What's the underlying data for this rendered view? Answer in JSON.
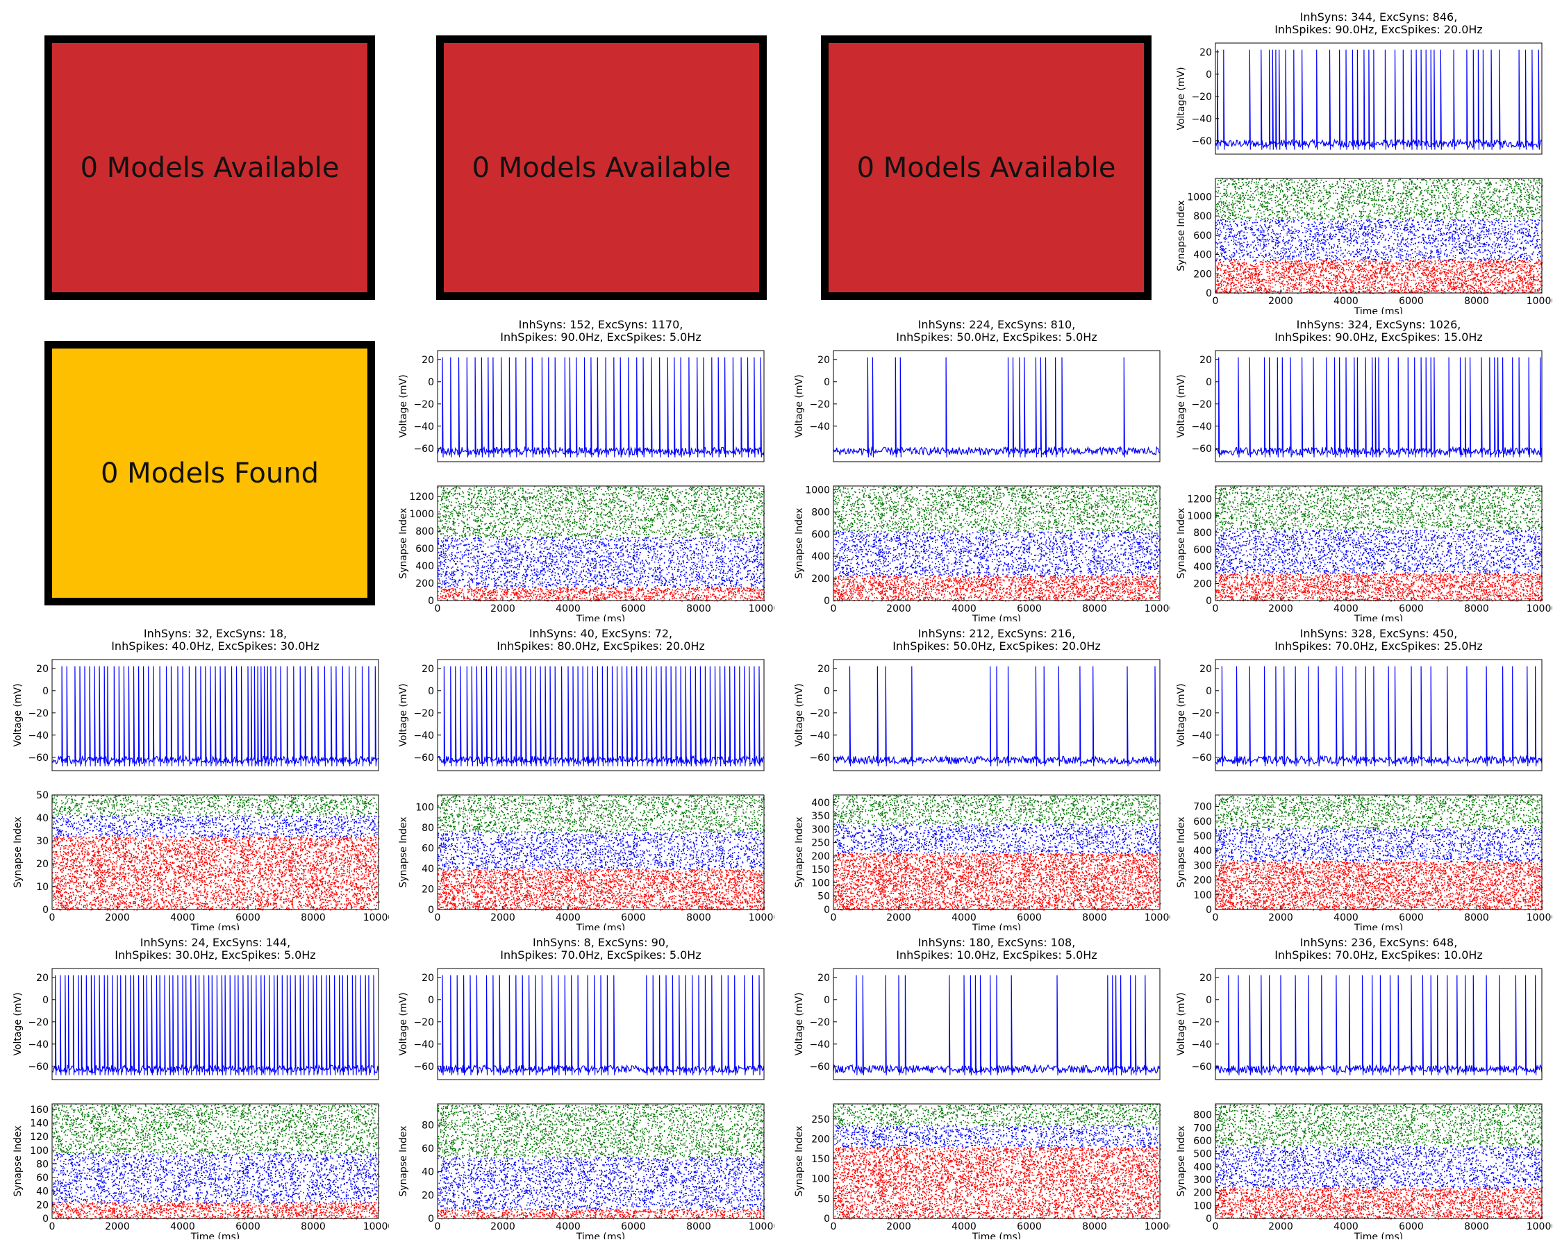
{
  "boxes": [
    {
      "label": "0 Models Available",
      "color": "#CB2B2E"
    },
    {
      "label": "0 Models Available",
      "color": "#CB2B2E"
    },
    {
      "label": "0 Models Available",
      "color": "#CB2B2E"
    },
    {
      "label": "0 Models Found",
      "color": "#FDBF00"
    }
  ],
  "colors": {
    "voltage": "#0000ff",
    "inh": "#ff0000",
    "mid": "#0000ff",
    "exc": "#007700"
  },
  "chart_data": [
    {
      "type": "line",
      "title_line1": "InhSyns: 344, ExcSyns: 846,",
      "title_line2": "InhSpikes: 90.0Hz, ExcSpikes: 20.0Hz",
      "voltage_ylabel": "Voltage (mV)",
      "voltage_yticks": [
        20,
        0,
        -20,
        -40,
        -60
      ],
      "voltage_ylim": [
        -72,
        28
      ],
      "raster_ylabel": "Synapse Index",
      "raster_yticks": [
        0,
        200,
        400,
        600,
        800,
        1000
      ],
      "raster_ylim": [
        0,
        1190
      ],
      "xlabel": "Time (ms)",
      "xticks": [
        0,
        2000,
        4000,
        6000,
        8000,
        10000
      ],
      "xlim": [
        0,
        10000
      ],
      "raster_bands": [
        [
          0,
          344,
          "inh"
        ],
        [
          344,
          767,
          "mid"
        ],
        [
          767,
          1190,
          "exc"
        ]
      ],
      "spike_times": [
        60,
        250,
        1050,
        1400,
        1650,
        1750,
        1850,
        1950,
        2150,
        2400,
        2650,
        3100,
        3500,
        3800,
        4000,
        4200,
        4350,
        4550,
        4700,
        4850,
        5200,
        5500,
        5750,
        6000,
        6150,
        6300,
        6450,
        6600,
        6700,
        6900,
        7300,
        7700,
        7900,
        8050,
        8200,
        8450,
        8700,
        9300,
        9500,
        9700,
        9900
      ]
    },
    {
      "type": "line",
      "title_line1": "InhSyns: 152, ExcSyns: 1170,",
      "title_line2": "InhSpikes: 90.0Hz, ExcSpikes: 5.0Hz",
      "voltage_ylabel": "Voltage (mV)",
      "voltage_yticks": [
        20,
        0,
        -20,
        -40,
        -60
      ],
      "voltage_ylim": [
        -72,
        28
      ],
      "raster_ylabel": "Synapse Index",
      "raster_yticks": [
        0,
        200,
        400,
        600,
        800,
        1000,
        1200
      ],
      "raster_ylim": [
        0,
        1322
      ],
      "xlabel": "Time (ms)",
      "xticks": [
        0,
        2000,
        4000,
        6000,
        8000,
        10000
      ],
      "xlim": [
        0,
        10000
      ],
      "raster_bands": [
        [
          0,
          152,
          "inh"
        ],
        [
          152,
          737,
          "mid"
        ],
        [
          737,
          1322,
          "exc"
        ]
      ],
      "spike_times": [
        150,
        400,
        650,
        900,
        1150,
        1350,
        1550,
        1700,
        1950,
        2200,
        2400,
        2700,
        2900,
        3200,
        3400,
        3600,
        3900,
        4050,
        4250,
        4500,
        4700,
        4900,
        5150,
        5400,
        5600,
        5850,
        6100,
        6300,
        6550,
        6800,
        7050,
        7250,
        7450,
        7700,
        7950,
        8150,
        8400,
        8600,
        8800,
        9050,
        9300,
        9500,
        9700,
        9900
      ]
    },
    {
      "type": "line",
      "title_line1": "InhSyns: 224, ExcSyns: 810,",
      "title_line2": "InhSpikes: 50.0Hz, ExcSpikes: 5.0Hz",
      "voltage_ylabel": "Voltage (mV)",
      "voltage_yticks": [
        20,
        0,
        -20,
        -40
      ],
      "voltage_ylim": [
        -72,
        28
      ],
      "raster_ylabel": "Synapse Index",
      "raster_yticks": [
        0,
        200,
        400,
        600,
        800,
        1000
      ],
      "raster_ylim": [
        0,
        1034
      ],
      "xlabel": "Time (ms)",
      "xticks": [
        0,
        2000,
        4000,
        6000,
        8000,
        10000
      ],
      "xlim": [
        0,
        10000
      ],
      "raster_bands": [
        [
          0,
          224,
          "inh"
        ],
        [
          224,
          629,
          "mid"
        ],
        [
          629,
          1034,
          "exc"
        ]
      ],
      "spike_times": [
        1050,
        1200,
        1900,
        2050,
        3450,
        5350,
        5500,
        5700,
        5850,
        6200,
        6350,
        6500,
        6800,
        7000,
        8900
      ]
    },
    {
      "type": "line",
      "title_line1": "InhSyns: 324, ExcSyns: 1026,",
      "title_line2": "InhSpikes: 90.0Hz, ExcSpikes: 15.0Hz",
      "voltage_ylabel": "Voltage (mV)",
      "voltage_yticks": [
        20,
        0,
        -20,
        -40,
        -60
      ],
      "voltage_ylim": [
        -72,
        28
      ],
      "raster_ylabel": "Synapse Index",
      "raster_yticks": [
        0,
        200,
        400,
        600,
        800,
        1000,
        1200
      ],
      "raster_ylim": [
        0,
        1350
      ],
      "xlabel": "Time (ms)",
      "xticks": [
        0,
        2000,
        4000,
        6000,
        8000,
        10000
      ],
      "xlim": [
        0,
        10000
      ],
      "raster_bands": [
        [
          0,
          324,
          "inh"
        ],
        [
          324,
          837,
          "mid"
        ],
        [
          837,
          1350,
          "exc"
        ]
      ],
      "spike_times": [
        100,
        700,
        1050,
        1500,
        1650,
        1900,
        2050,
        2300,
        2650,
        3000,
        3400,
        3650,
        3800,
        4000,
        4250,
        4350,
        4600,
        4800,
        4900,
        5000,
        5300,
        5600,
        5900,
        6100,
        6300,
        6450,
        6600,
        6700,
        7150,
        7500,
        7650,
        7800,
        8150,
        8400,
        8550,
        8650,
        8800,
        9100,
        9300,
        9600,
        9950
      ]
    },
    {
      "type": "line",
      "title_line1": "InhSyns: 32, ExcSyns: 18,",
      "title_line2": "InhSpikes: 40.0Hz, ExcSpikes: 30.0Hz",
      "voltage_ylabel": "Voltage (mV)",
      "voltage_yticks": [
        20,
        0,
        -20,
        -40,
        -60
      ],
      "voltage_ylim": [
        -72,
        28
      ],
      "raster_ylabel": "Synapse Index",
      "raster_yticks": [
        0,
        10,
        20,
        30,
        40,
        50
      ],
      "raster_ylim": [
        0,
        50
      ],
      "xlabel": "Time (ms)",
      "xticks": [
        0,
        2000,
        4000,
        6000,
        8000,
        10000
      ],
      "xlim": [
        0,
        10000
      ],
      "raster_bands": [
        [
          0,
          32,
          "inh"
        ],
        [
          32,
          41,
          "mid"
        ],
        [
          41,
          50,
          "exc"
        ]
      ],
      "spike_times": [
        300,
        450,
        700,
        850,
        1000,
        1150,
        1300,
        1450,
        1600,
        1700,
        1900,
        2050,
        2200,
        2350,
        2500,
        2650,
        2800,
        2950,
        3100,
        3300,
        3500,
        3650,
        3850,
        4000,
        4200,
        4400,
        4550,
        4700,
        4850,
        5000,
        5150,
        5300,
        5500,
        5650,
        5800,
        6000,
        6100,
        6200,
        6300,
        6400,
        6500,
        6600,
        6700,
        6850,
        7000,
        7200,
        7400,
        7600,
        7750,
        7950,
        8150,
        8350,
        8550,
        8700,
        8900,
        9100,
        9300,
        9500,
        9700,
        9900
      ]
    },
    {
      "type": "line",
      "title_line1": "InhSyns: 40, ExcSyns: 72,",
      "title_line2": "InhSpikes: 80.0Hz, ExcSpikes: 20.0Hz",
      "voltage_ylabel": "Voltage (mV)",
      "voltage_yticks": [
        20,
        0,
        -20,
        -40,
        -60
      ],
      "voltage_ylim": [
        -72,
        28
      ],
      "raster_ylabel": "Synapse Index",
      "raster_yticks": [
        0,
        20,
        40,
        60,
        80,
        100
      ],
      "raster_ylim": [
        0,
        112
      ],
      "xlabel": "Time (ms)",
      "xticks": [
        0,
        2000,
        4000,
        6000,
        8000,
        10000
      ],
      "xlim": [
        0,
        10000
      ],
      "raster_bands": [
        [
          0,
          40,
          "inh"
        ],
        [
          40,
          76,
          "mid"
        ],
        [
          76,
          112,
          "exc"
        ]
      ],
      "spike_times": [
        200,
        400,
        550,
        700,
        900,
        1050,
        1200,
        1350,
        1500,
        1650,
        1800,
        1950,
        2100,
        2250,
        2400,
        2550,
        2700,
        2850,
        3000,
        3150,
        3300,
        3450,
        3600,
        3800,
        4000,
        4150,
        4300,
        4450,
        4600,
        4750,
        4900,
        5050,
        5200,
        5350,
        5500,
        5650,
        5800,
        5950,
        6100,
        6250,
        6400,
        6550,
        6700,
        6850,
        7000,
        7150,
        7300,
        7450,
        7600,
        7750,
        7900,
        8050,
        8200,
        8350,
        8500,
        8650,
        8800,
        8950,
        9100,
        9250,
        9400,
        9550,
        9700,
        9850
      ]
    },
    {
      "type": "line",
      "title_line1": "InhSyns: 212, ExcSyns: 216,",
      "title_line2": "InhSpikes: 50.0Hz, ExcSpikes: 20.0Hz",
      "voltage_ylabel": "Voltage (mV)",
      "voltage_yticks": [
        20,
        0,
        -20,
        -40,
        -60
      ],
      "voltage_ylim": [
        -72,
        28
      ],
      "raster_ylabel": "Synapse Index",
      "raster_yticks": [
        0,
        50,
        100,
        150,
        200,
        250,
        300,
        350,
        400
      ],
      "raster_ylim": [
        0,
        428
      ],
      "xlabel": "Time (ms)",
      "xticks": [
        0,
        2000,
        4000,
        6000,
        8000,
        10000
      ],
      "xlim": [
        0,
        10000
      ],
      "raster_bands": [
        [
          0,
          212,
          "inh"
        ],
        [
          212,
          320,
          "mid"
        ],
        [
          320,
          428,
          "exc"
        ]
      ],
      "spike_times": [
        500,
        1350,
        1600,
        2400,
        4800,
        5000,
        5350,
        6200,
        6450,
        6900,
        7550,
        7950,
        9000,
        9850
      ]
    },
    {
      "type": "line",
      "title_line1": "InhSyns: 328, ExcSyns: 450,",
      "title_line2": "InhSpikes: 70.0Hz, ExcSpikes: 25.0Hz",
      "voltage_ylabel": "Voltage (mV)",
      "voltage_yticks": [
        20,
        0,
        -20,
        -40,
        -60
      ],
      "voltage_ylim": [
        -72,
        28
      ],
      "raster_ylabel": "Synapse Index",
      "raster_yticks": [
        0,
        100,
        200,
        300,
        400,
        500,
        600,
        700
      ],
      "raster_ylim": [
        0,
        778
      ],
      "xlabel": "Time (ms)",
      "xticks": [
        0,
        2000,
        4000,
        6000,
        8000,
        10000
      ],
      "xlim": [
        0,
        10000
      ],
      "raster_bands": [
        [
          0,
          328,
          "inh"
        ],
        [
          328,
          553,
          "mid"
        ],
        [
          553,
          778,
          "exc"
        ]
      ],
      "spike_times": [
        200,
        650,
        1050,
        1500,
        1850,
        2100,
        2450,
        2850,
        3150,
        3700,
        3900,
        4300,
        4600,
        4850,
        5300,
        5500,
        6000,
        6300,
        6600,
        7100,
        7700,
        8300,
        8800,
        9100,
        9550,
        9800
      ]
    },
    {
      "type": "line",
      "title_line1": "InhSyns: 24, ExcSyns: 144,",
      "title_line2": "InhSpikes: 30.0Hz, ExcSpikes: 5.0Hz",
      "voltage_ylabel": "Voltage (mV)",
      "voltage_yticks": [
        20,
        0,
        -20,
        -40,
        -60
      ],
      "voltage_ylim": [
        -72,
        28
      ],
      "raster_ylabel": "Synapse Index",
      "raster_yticks": [
        0,
        20,
        40,
        60,
        80,
        100,
        120,
        140,
        160
      ],
      "raster_ylim": [
        0,
        168
      ],
      "xlabel": "Time (ms)",
      "xticks": [
        0,
        2000,
        4000,
        6000,
        8000,
        10000
      ],
      "xlim": [
        0,
        10000
      ],
      "raster_bands": [
        [
          0,
          24,
          "inh"
        ],
        [
          24,
          96,
          "mid"
        ],
        [
          96,
          168,
          "exc"
        ]
      ],
      "spike_times": [
        100,
        250,
        400,
        500,
        650,
        800,
        900,
        1050,
        1200,
        1300,
        1450,
        1600,
        1700,
        1850,
        2000,
        2100,
        2250,
        2400,
        2500,
        2650,
        2800,
        2900,
        3050,
        3200,
        3300,
        3450,
        3600,
        3700,
        3850,
        4000,
        4100,
        4250,
        4400,
        4500,
        4650,
        4800,
        4900,
        5050,
        5200,
        5300,
        5450,
        5600,
        5700,
        5850,
        6000,
        6100,
        6250,
        6400,
        6500,
        6650,
        6800,
        6900,
        7050,
        7200,
        7300,
        7450,
        7600,
        7700,
        7850,
        8000,
        8100,
        8250,
        8400,
        8500,
        8650,
        8800,
        8900,
        9050,
        9200,
        9300,
        9450,
        9600,
        9700,
        9850
      ]
    },
    {
      "type": "line",
      "title_line1": "InhSyns: 8, ExcSyns: 90,",
      "title_line2": "InhSpikes: 70.0Hz, ExcSpikes: 5.0Hz",
      "voltage_ylabel": "Voltage (mV)",
      "voltage_yticks": [
        20,
        0,
        -20,
        -40,
        -60
      ],
      "voltage_ylim": [
        -72,
        28
      ],
      "raster_ylabel": "Synapse Index",
      "raster_yticks": [
        0,
        20,
        40,
        60,
        80
      ],
      "raster_ylim": [
        0,
        98
      ],
      "xlabel": "Time (ms)",
      "xticks": [
        0,
        2000,
        4000,
        6000,
        8000,
        10000
      ],
      "xlim": [
        0,
        10000
      ],
      "raster_bands": [
        [
          0,
          8,
          "inh"
        ],
        [
          8,
          53,
          "mid"
        ],
        [
          53,
          98,
          "exc"
        ]
      ],
      "spike_times": [
        150,
        400,
        600,
        800,
        1000,
        1200,
        1500,
        1700,
        1900,
        2200,
        2400,
        2600,
        2800,
        3000,
        3200,
        3500,
        3700,
        3900,
        4100,
        4300,
        4600,
        4800,
        5000,
        5200,
        5400,
        6400,
        6600,
        6800,
        7000,
        7200,
        7400,
        7600,
        7800,
        8000,
        8200,
        8400,
        8700,
        8900,
        9100,
        9400,
        9650,
        9850
      ]
    },
    {
      "type": "line",
      "title_line1": "InhSyns: 180, ExcSyns: 108,",
      "title_line2": "InhSpikes: 10.0Hz, ExcSpikes: 5.0Hz",
      "voltage_ylabel": "Voltage (mV)",
      "voltage_yticks": [
        20,
        0,
        -20,
        -40,
        -60
      ],
      "voltage_ylim": [
        -72,
        28
      ],
      "raster_ylabel": "Synapse Index",
      "raster_yticks": [
        0,
        50,
        100,
        150,
        200,
        250
      ],
      "raster_ylim": [
        0,
        288
      ],
      "xlabel": "Time (ms)",
      "xticks": [
        0,
        2000,
        4000,
        6000,
        8000,
        10000
      ],
      "xlim": [
        0,
        10000
      ],
      "raster_bands": [
        [
          0,
          180,
          "inh"
        ],
        [
          180,
          234,
          "mid"
        ],
        [
          234,
          288,
          "exc"
        ]
      ],
      "spike_times": [
        700,
        900,
        1600,
        2000,
        2200,
        3550,
        4000,
        4200,
        4350,
        4500,
        4800,
        5000,
        5450,
        6850,
        8400,
        8550,
        8650,
        8800,
        9100,
        9250,
        9550
      ]
    },
    {
      "type": "line",
      "title_line1": "InhSyns: 236, ExcSyns: 648,",
      "title_line2": "InhSpikes: 70.0Hz, ExcSpikes: 10.0Hz",
      "voltage_ylabel": "Voltage (mV)",
      "voltage_yticks": [
        20,
        0,
        -20,
        -40,
        -60
      ],
      "voltage_ylim": [
        -72,
        28
      ],
      "raster_ylabel": "Synapse Index",
      "raster_yticks": [
        0,
        100,
        200,
        300,
        400,
        500,
        600,
        700,
        800
      ],
      "raster_ylim": [
        0,
        884
      ],
      "xlabel": "Time (ms)",
      "xticks": [
        0,
        2000,
        4000,
        6000,
        8000,
        10000
      ],
      "xlim": [
        0,
        10000
      ],
      "raster_bands": [
        [
          0,
          236,
          "inh"
        ],
        [
          236,
          560,
          "mid"
        ],
        [
          560,
          884,
          "exc"
        ]
      ],
      "spike_times": [
        400,
        700,
        1050,
        1400,
        1650,
        2000,
        2450,
        2850,
        3250,
        3700,
        4100,
        4500,
        4800,
        5050,
        5350,
        5600,
        6000,
        6350,
        6600,
        6800,
        7100,
        7400,
        7650,
        7900,
        8300,
        8700,
        9200,
        9500,
        9800
      ]
    }
  ]
}
